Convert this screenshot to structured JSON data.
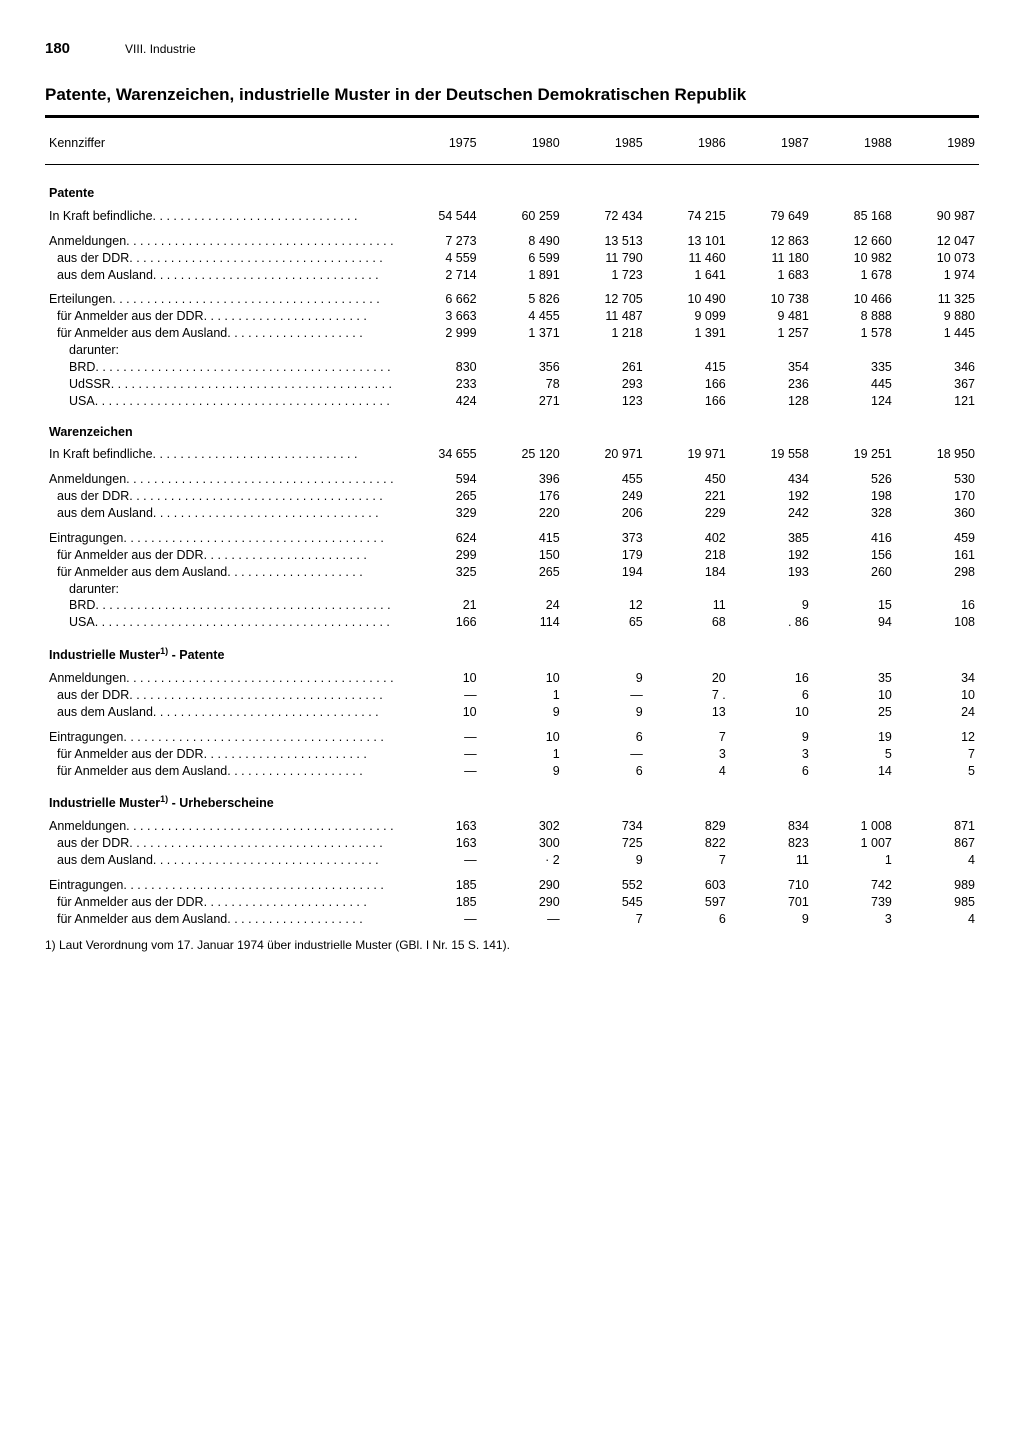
{
  "page_number": "180",
  "chapter": "VIII. Industrie",
  "title": "Patente, Warenzeichen, industrielle Muster in der Deutschen Demokratischen Republik",
  "columns_header": "Kennziffer",
  "years": [
    "1975",
    "1980",
    "1985",
    "1986",
    "1987",
    "1988",
    "1989"
  ],
  "footnote": "1) Laut Verordnung vom 17. Januar 1974 über industrielle Muster (GBl. I Nr. 15 S. 141).",
  "sections": [
    {
      "header": "Patente",
      "groups": [
        [
          {
            "l": "In Kraft befindliche",
            "i": 0,
            "v": [
              "54 544",
              "60 259",
              "72 434",
              "74 215",
              "79 649",
              "85 168",
              "90 987"
            ]
          }
        ],
        [
          {
            "l": "Anmeldungen",
            "i": 0,
            "v": [
              "7 273",
              "8 490",
              "13 513",
              "13 101",
              "12 863",
              "12 660",
              "12 047"
            ]
          },
          {
            "l": "aus der DDR",
            "i": 1,
            "v": [
              "4 559",
              "6 599",
              "11 790",
              "11 460",
              "11 180",
              "10 982",
              "10 073"
            ]
          },
          {
            "l": "aus dem Ausland",
            "i": 1,
            "v": [
              "2 714",
              "1 891",
              "1 723",
              "1 641",
              "1 683",
              "1 678",
              "1 974"
            ]
          }
        ],
        [
          {
            "l": "Erteilungen",
            "i": 0,
            "v": [
              "6 662",
              "5 826",
              "12 705",
              "10 490",
              "10 738",
              "10 466",
              "11 325"
            ]
          },
          {
            "l": "für Anmelder aus der DDR",
            "i": 1,
            "v": [
              "3 663",
              "4 455",
              "11 487",
              "9 099",
              "9 481",
              "8 888",
              "9 880"
            ]
          },
          {
            "l": "für Anmelder aus dem Ausland",
            "i": 1,
            "v": [
              "2 999",
              "1 371",
              "1 218",
              "1 391",
              "1 257",
              "1 578",
              "1 445"
            ]
          },
          {
            "l": "darunter:",
            "i": 2,
            "nodots": true,
            "v": [
              "",
              "",
              "",
              "",
              "",
              "",
              ""
            ]
          },
          {
            "l": "BRD",
            "i": 2,
            "v": [
              "830",
              "356",
              "261",
              "415",
              "354",
              "335",
              "346"
            ]
          },
          {
            "l": "UdSSR",
            "i": 2,
            "v": [
              "233",
              "78",
              "293",
              "166",
              "236",
              "445",
              "367"
            ]
          },
          {
            "l": "USA",
            "i": 2,
            "v": [
              "424",
              "271",
              "123",
              "166",
              "128",
              "124",
              "121"
            ]
          }
        ]
      ]
    },
    {
      "header": "Warenzeichen",
      "groups": [
        [
          {
            "l": "In Kraft befindliche",
            "i": 0,
            "v": [
              "34 655",
              "25 120",
              "20 971",
              "19 971",
              "19 558",
              "19 251",
              "18 950"
            ]
          }
        ],
        [
          {
            "l": "Anmeldungen",
            "i": 0,
            "v": [
              "594",
              "396",
              "455",
              "450",
              "434",
              "526",
              "530"
            ]
          },
          {
            "l": "aus der DDR",
            "i": 1,
            "v": [
              "265",
              "176",
              "249",
              "221",
              "192",
              "198",
              "170"
            ]
          },
          {
            "l": "aus dem Ausland",
            "i": 1,
            "v": [
              "329",
              "220",
              "206",
              "229",
              "242",
              "328",
              "360"
            ]
          }
        ],
        [
          {
            "l": "Eintragungen",
            "i": 0,
            "v": [
              "624",
              "415",
              "373",
              "402",
              "385",
              "416",
              "459"
            ]
          },
          {
            "l": "für Anmelder aus der DDR",
            "i": 1,
            "v": [
              "299",
              "150",
              "179",
              "218",
              "192",
              "156",
              "161"
            ]
          },
          {
            "l": "für Anmelder aus dem Ausland",
            "i": 1,
            "v": [
              "325",
              "265",
              "194",
              "184",
              "193",
              "260",
              "298"
            ]
          },
          {
            "l": "darunter:",
            "i": 2,
            "nodots": true,
            "v": [
              "",
              "",
              "",
              "",
              "",
              "",
              ""
            ]
          },
          {
            "l": "BRD",
            "i": 2,
            "v": [
              "21",
              "24",
              "12",
              "11",
              "9",
              "15",
              "16"
            ]
          },
          {
            "l": "USA",
            "i": 2,
            "v": [
              "166",
              "114",
              "65",
              "68",
              ". 86",
              "94",
              "108"
            ]
          }
        ]
      ]
    },
    {
      "header": "Industrielle Muster<sup>1)</sup> - Patente",
      "groups": [
        [
          {
            "l": "Anmeldungen",
            "i": 0,
            "v": [
              "10",
              "10",
              "9",
              "20",
              "16",
              "35",
              "34"
            ]
          },
          {
            "l": "aus der DDR",
            "i": 1,
            "v": [
              "—",
              "1",
              "—",
              "7 .",
              "6",
              "10",
              "10"
            ]
          },
          {
            "l": "aus dem Ausland",
            "i": 1,
            "v": [
              "10",
              "9",
              "9",
              "13",
              "10",
              "25",
              "24"
            ]
          }
        ],
        [
          {
            "l": "Eintragungen",
            "i": 0,
            "v": [
              "—",
              "10",
              "6",
              "7",
              "9",
              "19",
              "12"
            ]
          },
          {
            "l": "für Anmelder aus der DDR",
            "i": 1,
            "v": [
              "—",
              "1",
              "—",
              "3",
              "3",
              "5",
              "7"
            ]
          },
          {
            "l": "für Anmelder aus dem Ausland",
            "i": 1,
            "v": [
              "—",
              "9",
              "6",
              "4",
              "6",
              "14",
              "5"
            ]
          }
        ]
      ]
    },
    {
      "header": "Industrielle Muster<sup>1)</sup> - Urheberscheine",
      "groups": [
        [
          {
            "l": "Anmeldungen",
            "i": 0,
            "v": [
              "163",
              "302",
              "734",
              "829",
              "834",
              "1 008",
              "871"
            ]
          },
          {
            "l": "aus der DDR",
            "i": 1,
            "v": [
              "163",
              "300",
              "725",
              "822",
              "823",
              "1 007",
              "867"
            ]
          },
          {
            "l": "aus dem Ausland",
            "i": 1,
            "v": [
              "—",
              "· 2",
              "9",
              "7",
              "11",
              "1",
              "4"
            ]
          }
        ],
        [
          {
            "l": "Eintragungen",
            "i": 0,
            "v": [
              "185",
              "290",
              "552",
              "603",
              "710",
              "742",
              "989"
            ]
          },
          {
            "l": "für Anmelder aus der DDR",
            "i": 1,
            "v": [
              "185",
              "290",
              "545",
              "597",
              "701",
              "739",
              "985"
            ]
          },
          {
            "l": "für Anmelder aus dem Ausland",
            "i": 1,
            "v": [
              "—",
              "—",
              "7",
              "6",
              "9",
              "3",
              "4"
            ]
          }
        ]
      ]
    }
  ]
}
